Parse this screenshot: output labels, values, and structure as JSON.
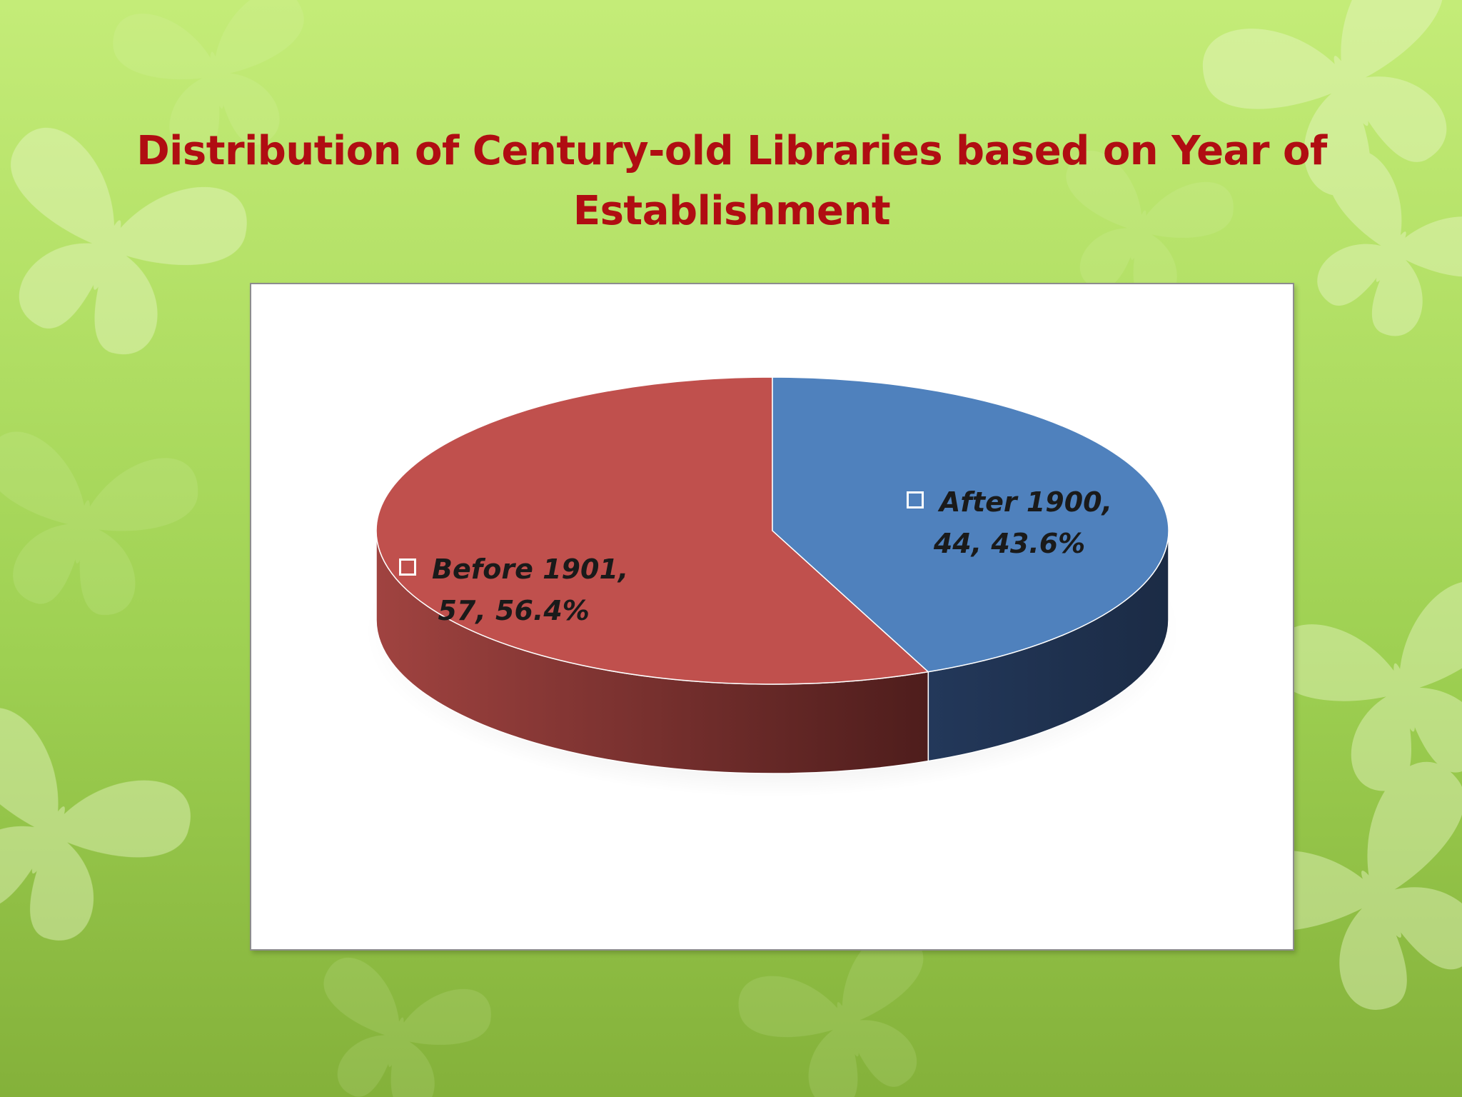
{
  "title": "Distribution of Century-old Libraries based on Year of Establishment",
  "colors": {
    "background": "#b5e26a",
    "title": "#b00d12",
    "before_1901": "#c0504d",
    "after_1900": "#4f81bd"
  },
  "chart_data": {
    "type": "pie",
    "style": "3d",
    "title": "Distribution of Century-old Libraries based on Year of Establishment",
    "categories": [
      "Before 1901",
      "After 1900"
    ],
    "values": [
      57,
      44
    ],
    "percentages": [
      56.4,
      43.6
    ],
    "colors": [
      "#c0504d",
      "#4f81bd"
    ],
    "legend": "none",
    "labels": [
      {
        "line1": "Before 1901,",
        "line2": "57, 56.4%"
      },
      {
        "line1": "After 1900,",
        "line2": "44, 43.6%"
      }
    ]
  }
}
